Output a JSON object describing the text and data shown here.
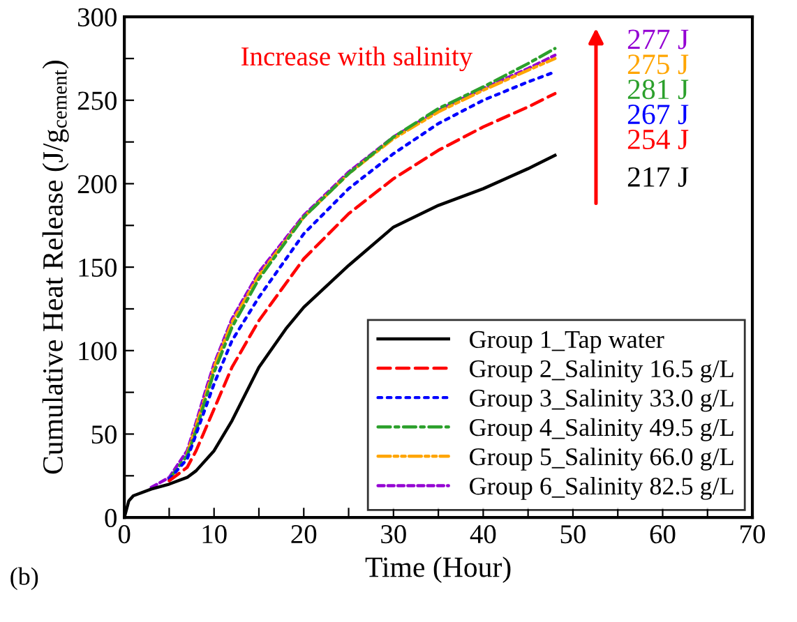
{
  "chart_data": {
    "type": "line",
    "xlabel": "Time (Hour)",
    "ylabel": "Cumulative Heat Release (J/g$_{cement}$)",
    "xlim": [
      0,
      70
    ],
    "ylim": [
      0,
      300
    ],
    "xticks": [
      0,
      {
        "value": 5,
        "label": null
      },
      10,
      {
        "value": 15,
        "label": null
      },
      20,
      {
        "value": 25,
        "label": null
      },
      30,
      {
        "value": 35,
        "label": null
      },
      40,
      {
        "value": 45,
        "label": null
      },
      50,
      {
        "value": 55,
        "label": null
      },
      60,
      {
        "value": 65,
        "label": null
      },
      70
    ],
    "yticks": [
      0,
      {
        "value": 25,
        "label": null
      },
      50,
      {
        "value": 75,
        "label": null
      },
      100,
      {
        "value": 125,
        "label": null
      },
      150,
      {
        "value": 175,
        "label": null
      },
      200,
      {
        "value": 225,
        "label": null
      },
      250,
      {
        "value": 275,
        "label": null
      },
      300
    ],
    "grid": false,
    "legend": "bottom right",
    "marker": "none",
    "annotations": [
      "Increase with salinity",
      "277 J",
      "275 J",
      "281 J",
      "267 J",
      "254 J",
      "217 J",
      "(b)"
    ],
    "series": [
      {
        "name": "Group 1_Tap water",
        "color": "#000000",
        "line_style": "solid",
        "x": [
          0,
          0.5,
          1,
          3,
          5,
          7,
          8,
          10,
          12,
          15,
          18,
          20,
          25,
          30,
          35,
          40,
          45,
          48
        ],
        "values": [
          0,
          10,
          13,
          17,
          20,
          24,
          28,
          40,
          58,
          90,
          113,
          126,
          151,
          174,
          187,
          197,
          209,
          217
        ]
      },
      {
        "name": "Group 2_Salinity 16.5 g/L",
        "color": "#ff0000",
        "line_style": "dashed",
        "x": [
          5,
          7,
          8,
          10,
          12,
          15,
          20,
          25,
          30,
          35,
          40,
          45,
          48
        ],
        "values": [
          22,
          30,
          40,
          65,
          90,
          118,
          155,
          182,
          203,
          220,
          234,
          246,
          254
        ]
      },
      {
        "name": "Group 3_Salinity 33.0 g/L",
        "color": "#0000ff",
        "line_style": "dotted",
        "x": [
          5,
          7,
          8,
          10,
          12,
          15,
          20,
          25,
          30,
          35,
          40,
          45,
          48
        ],
        "values": [
          23,
          35,
          50,
          80,
          106,
          132,
          170,
          197,
          218,
          236,
          250,
          261,
          267
        ]
      },
      {
        "name": "Group 4_Salinity 49.5 g/L",
        "color": "#2ca02c",
        "line_style": "dashdot",
        "x": [
          5,
          7,
          8,
          9,
          10,
          12,
          15,
          20,
          25,
          30,
          35,
          40,
          45,
          48
        ],
        "values": [
          23,
          37,
          52,
          70,
          87,
          114,
          143,
          180,
          206,
          228,
          245,
          258,
          272,
          281
        ]
      },
      {
        "name": "Group 5_Salinity 66.0 g/L",
        "color": "#ffa500",
        "line_style": "dashdotdot",
        "x": [
          7,
          8,
          9,
          10,
          12,
          15,
          20,
          25,
          30,
          35,
          40,
          45,
          48
        ],
        "values": [
          38,
          55,
          72,
          90,
          117,
          145,
          180,
          206,
          227,
          243,
          256,
          268,
          275
        ]
      },
      {
        "name": "Group 6_Salinity 82.5 g/L",
        "color": "#9400d3",
        "line_style": "shortdash",
        "x": [
          3,
          5,
          7,
          8,
          9,
          10,
          12,
          15,
          20,
          25,
          30,
          35,
          40,
          45,
          48
        ],
        "values": [
          18,
          24,
          40,
          57,
          75,
          92,
          119,
          147,
          181,
          207,
          228,
          244,
          257,
          269,
          277
        ]
      }
    ]
  }
}
